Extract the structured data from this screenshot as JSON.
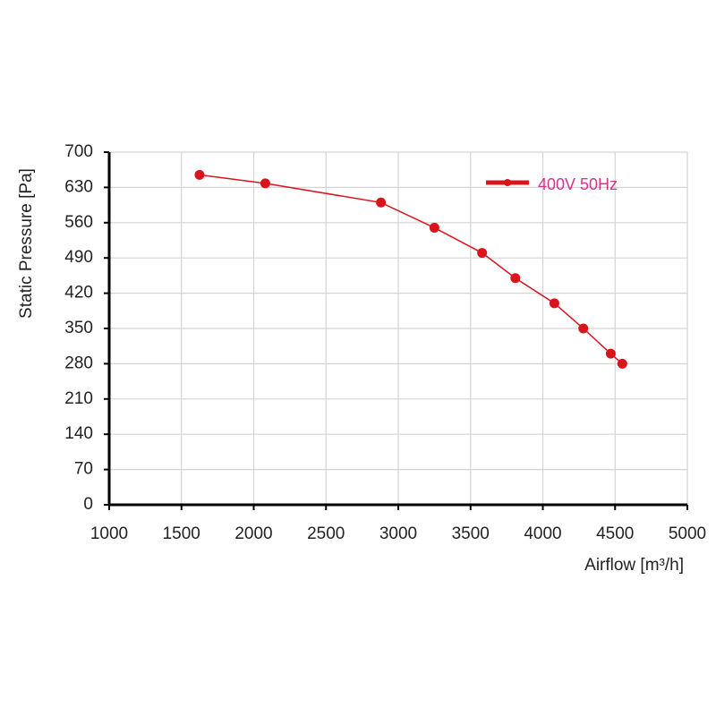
{
  "chart_data": {
    "type": "line",
    "x_label": "Airflow [m³/h]",
    "y_label": "Static Pressure [Pa]",
    "xlim": [
      1000,
      5000
    ],
    "xticks": [
      1000,
      1500,
      2000,
      2500,
      3000,
      3500,
      4000,
      4500,
      5000
    ],
    "ylim": [
      0,
      700
    ],
    "yticks": [
      0,
      70,
      140,
      210,
      280,
      350,
      420,
      490,
      560,
      630,
      700
    ],
    "grid": true,
    "legend": "top-right",
    "series": [
      {
        "name": "400V 50Hz",
        "color": "#d9141b",
        "x": [
          1625,
          2080,
          2880,
          3250,
          3580,
          3810,
          4080,
          4280,
          4470,
          4550
        ],
        "values": [
          655,
          638,
          600,
          550,
          500,
          450,
          400,
          350,
          300,
          280
        ]
      }
    ]
  }
}
